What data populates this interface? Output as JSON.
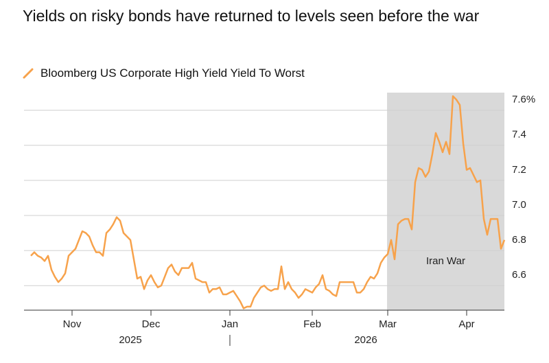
{
  "chart_data": {
    "type": "line",
    "title": "Yields on risky bonds have returned to levels seen before the war",
    "series": [
      {
        "name": "Bloomberg US Corporate High Yield Yield To Worst",
        "color": "#f7a24b",
        "values": [
          6.77,
          6.79,
          6.77,
          6.76,
          6.74,
          6.77,
          6.69,
          6.65,
          6.62,
          6.64,
          6.67,
          6.77,
          6.79,
          6.81,
          6.86,
          6.91,
          6.9,
          6.88,
          6.83,
          6.79,
          6.79,
          6.77,
          6.9,
          6.92,
          6.95,
          6.99,
          6.97,
          6.9,
          6.88,
          6.86,
          6.75,
          6.64,
          6.65,
          6.58,
          6.63,
          6.66,
          6.62,
          6.59,
          6.6,
          6.65,
          6.7,
          6.72,
          6.68,
          6.66,
          6.7,
          6.7,
          6.7,
          6.73,
          6.64,
          6.63,
          6.62,
          6.62,
          6.56,
          6.58,
          6.58,
          6.59,
          6.55,
          6.55,
          6.56,
          6.57,
          6.54,
          6.51,
          6.47,
          6.48,
          6.48,
          6.53,
          6.56,
          6.59,
          6.6,
          6.58,
          6.57,
          6.58,
          6.58,
          6.71,
          6.58,
          6.62,
          6.58,
          6.56,
          6.53,
          6.55,
          6.58,
          6.57,
          6.56,
          6.59,
          6.61,
          6.66,
          6.58,
          6.57,
          6.55,
          6.54,
          6.62,
          6.62,
          6.62,
          6.62,
          6.62,
          6.56,
          6.56,
          6.58,
          6.62,
          6.65,
          6.64,
          6.67,
          6.73,
          6.76,
          6.78,
          6.86,
          6.75,
          6.95,
          6.97,
          6.98,
          6.98,
          6.92,
          7.19,
          7.27,
          7.26,
          7.22,
          7.25,
          7.35,
          7.47,
          7.42,
          7.36,
          7.42,
          7.35,
          7.68,
          7.66,
          7.63,
          7.41,
          7.26,
          7.27,
          7.23,
          7.19,
          7.2,
          6.98,
          6.89,
          6.98,
          6.98,
          6.98,
          6.81,
          6.86
        ]
      }
    ],
    "categories": [
      null,
      null,
      null,
      null,
      null,
      null,
      null,
      null,
      null,
      null,
      null,
      null,
      "Nov",
      null,
      null,
      null,
      null,
      null,
      null,
      null,
      null,
      null,
      null,
      null,
      null,
      null,
      null,
      null,
      null,
      null,
      null,
      null,
      null,
      null,
      null,
      "Dec",
      null,
      null,
      null,
      null,
      null,
      null,
      null,
      null,
      null,
      null,
      null,
      null,
      null,
      null,
      null,
      null,
      null,
      null,
      null,
      null,
      null,
      null,
      "Jan",
      null,
      null,
      null,
      null,
      null,
      null,
      null,
      null,
      null,
      null,
      null,
      null,
      null,
      null,
      null,
      null,
      null,
      null,
      null,
      null,
      null,
      null,
      null,
      "Feb",
      null,
      null,
      null,
      null,
      null,
      null,
      null,
      null,
      null,
      null,
      null,
      null,
      null,
      null,
      null,
      null,
      null,
      null,
      null,
      null,
      null,
      "Mar",
      null,
      null,
      null,
      null,
      null,
      null,
      null,
      null,
      null,
      null,
      null,
      null,
      null,
      null,
      null,
      null,
      null,
      null,
      null,
      null,
      null,
      null,
      "Apr",
      null,
      null,
      null,
      null,
      null,
      null,
      null,
      null,
      null,
      null,
      null
    ],
    "years": [
      "2025",
      "2026"
    ],
    "annotation": {
      "text": "Iran War",
      "from": "Mar"
    },
    "ylim": [
      6.46,
      7.7
    ],
    "yticks": [
      6.6,
      6.8,
      {
        "value": 7,
        "label": "7.0"
      },
      7.2,
      7.4,
      {
        "value": 7.6,
        "label": "7.6%"
      }
    ],
    "grid": true
  }
}
